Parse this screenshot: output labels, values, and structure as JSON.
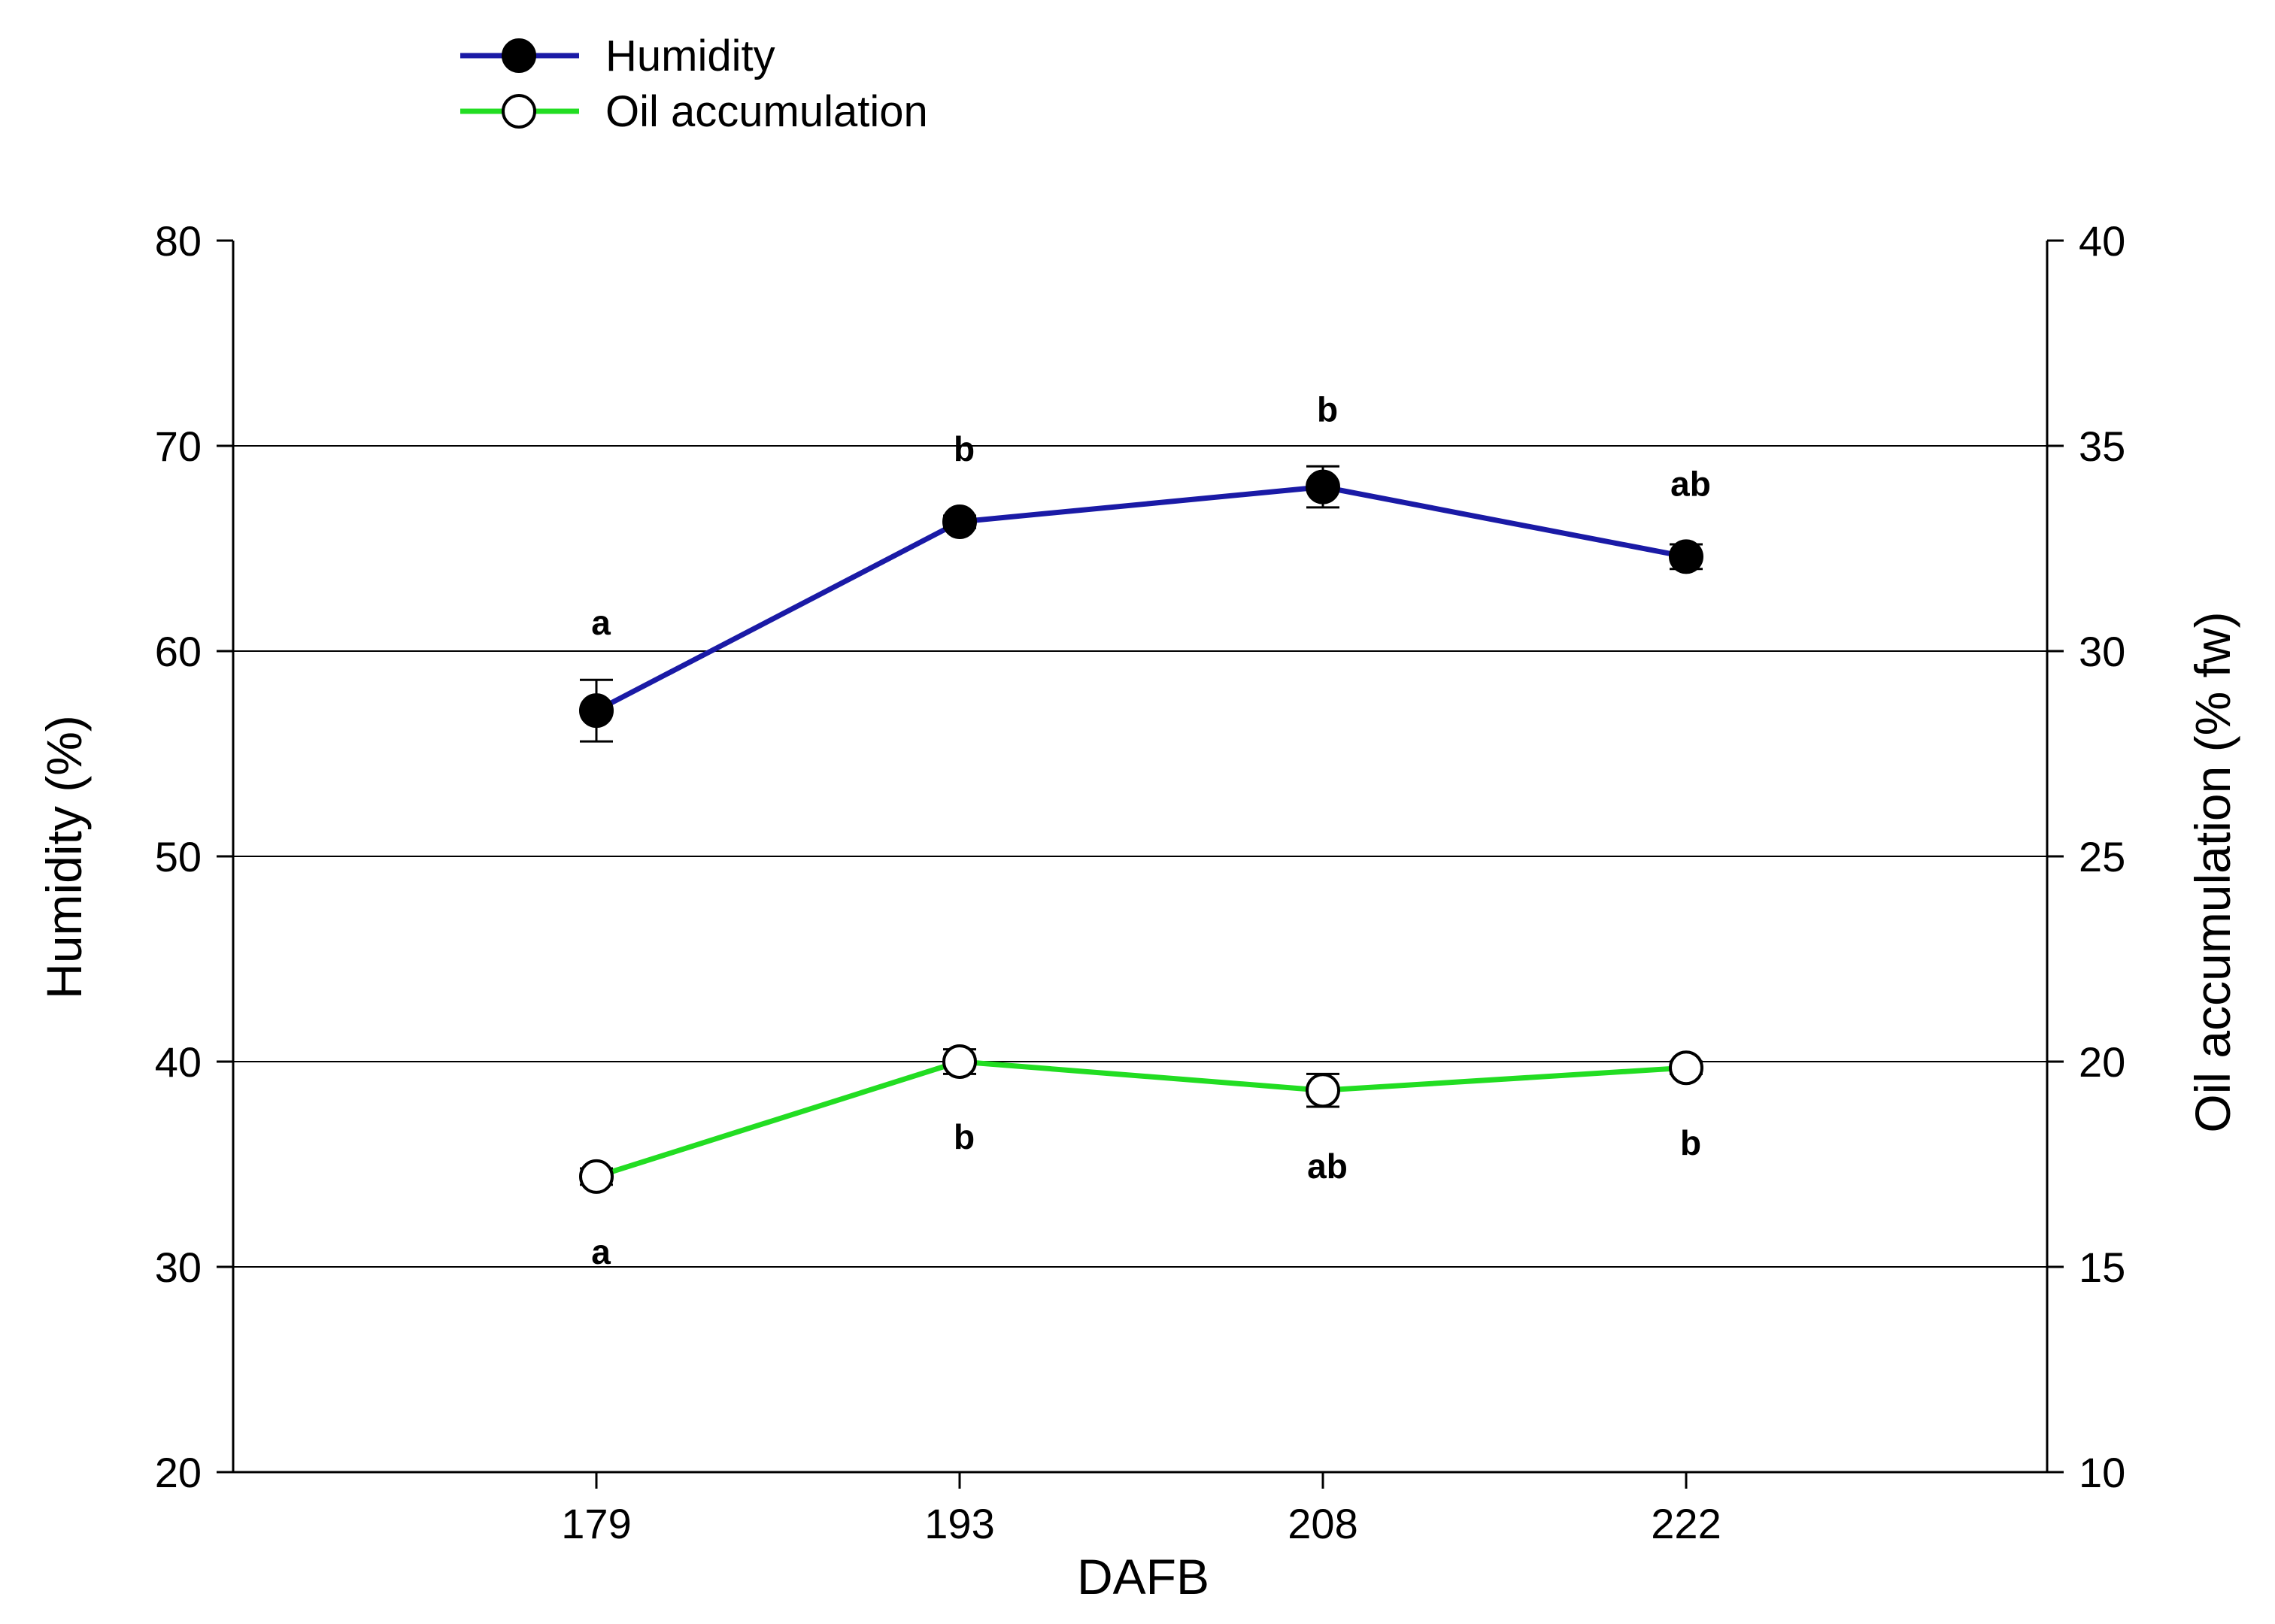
{
  "chart_data": {
    "type": "line",
    "xlabel": "DAFB",
    "ylabel": "Humidity (%)",
    "y2label": "Oil accumulation (% fw)",
    "categories": [
      "179",
      "193",
      "208",
      "222"
    ],
    "ylim": [
      20,
      80
    ],
    "y2lim": [
      10,
      40
    ],
    "yticks": [
      20,
      30,
      40,
      50,
      60,
      70,
      80
    ],
    "y2ticks": [
      10,
      15,
      20,
      25,
      30,
      35,
      40
    ],
    "gridlines_at": [
      30,
      40,
      50,
      60,
      70
    ],
    "legend_position": "top-left",
    "series": [
      {
        "name": "Humidity",
        "axis": "left",
        "color": "#1a1aa6",
        "marker": "filled-circle",
        "values": [
          57.1,
          66.3,
          68.0,
          64.6
        ],
        "errors": [
          1.5,
          0.3,
          1.0,
          0.6
        ],
        "significance": [
          "a",
          "b",
          "b",
          "ab"
        ],
        "label_placement": "above"
      },
      {
        "name": "Oil accumulation",
        "axis": "right",
        "color": "#22dd22",
        "marker": "open-circle",
        "values": [
          17.2,
          20.0,
          19.3,
          19.85
        ],
        "errors": [
          0.2,
          0.3,
          0.4,
          0.15
        ],
        "significance": [
          "a",
          "b",
          "ab",
          "b"
        ],
        "label_placement": "below"
      }
    ]
  }
}
